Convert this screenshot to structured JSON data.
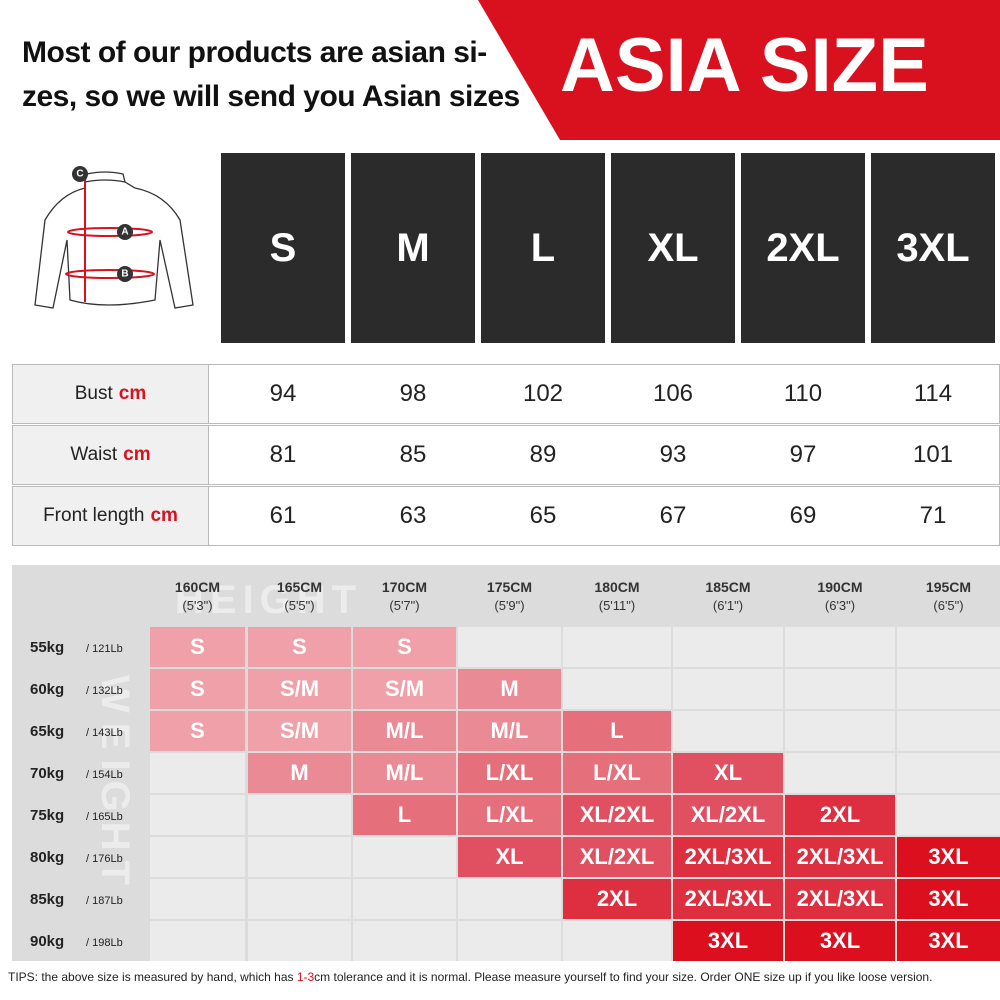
{
  "header": {
    "lines": [
      "Most of our products are asian si-",
      "zes, so we will send you Asian sizes"
    ],
    "badge": "ASIA SIZE"
  },
  "diagram": {
    "labels": [
      "C",
      "A",
      "B"
    ]
  },
  "sizes": [
    "S",
    "M",
    "L",
    "XL",
    "2XL",
    "3XL"
  ],
  "measurements": [
    {
      "label": "Bust",
      "unit": "cm",
      "values": [
        94,
        98,
        102,
        106,
        110,
        114
      ]
    },
    {
      "label": "Waist",
      "unit": "cm",
      "values": [
        81,
        85,
        89,
        93,
        97,
        101
      ]
    },
    {
      "label": "Front length",
      "unit": "cm",
      "values": [
        61,
        63,
        65,
        67,
        69,
        71
      ]
    }
  ],
  "fit_chart": {
    "watermarks": [
      "HEIGHT",
      "WEIGHT"
    ],
    "heights": [
      {
        "cm": "160CM",
        "ft": "(5'3\")"
      },
      {
        "cm": "165CM",
        "ft": "(5'5\")"
      },
      {
        "cm": "170CM",
        "ft": "(5'7\")"
      },
      {
        "cm": "175CM",
        "ft": "(5'9\")"
      },
      {
        "cm": "180CM",
        "ft": "(5'11\")"
      },
      {
        "cm": "185CM",
        "ft": "(6'1\")"
      },
      {
        "cm": "190CM",
        "ft": "(6'3\")"
      },
      {
        "cm": "195CM",
        "ft": "(6'5\")"
      }
    ],
    "weights": [
      {
        "kg": "55kg",
        "lb": "/ 121Lb"
      },
      {
        "kg": "60kg",
        "lb": "/ 132Lb"
      },
      {
        "kg": "65kg",
        "lb": "/ 143Lb"
      },
      {
        "kg": "70kg",
        "lb": "/ 154Lb"
      },
      {
        "kg": "75kg",
        "lb": "/ 165Lb"
      },
      {
        "kg": "80kg",
        "lb": "/ 176Lb"
      },
      {
        "kg": "85kg",
        "lb": "/ 187Lb"
      },
      {
        "kg": "90kg",
        "lb": "/ 198Lb"
      }
    ],
    "cells": [
      [
        {
          "text": "S",
          "color": "#efa0a9"
        },
        {
          "text": "S",
          "color": "#efa0a9"
        },
        {
          "text": "S",
          "color": "#efa0a9"
        },
        null,
        null,
        null,
        null,
        null
      ],
      [
        {
          "text": "S",
          "color": "#efa0a9"
        },
        {
          "text": "S/M",
          "color": "#efa0a9"
        },
        {
          "text": "S/M",
          "color": "#efa0a9"
        },
        {
          "text": "M",
          "color": "#ea8a95"
        },
        null,
        null,
        null,
        null
      ],
      [
        {
          "text": "S",
          "color": "#efa0a9"
        },
        {
          "text": "S/M",
          "color": "#efa0a9"
        },
        {
          "text": "M/L",
          "color": "#ea8a95"
        },
        {
          "text": "M/L",
          "color": "#ea8a95"
        },
        {
          "text": "L",
          "color": "#e56f7b"
        },
        null,
        null,
        null
      ],
      [
        null,
        {
          "text": "M",
          "color": "#ea8a95"
        },
        {
          "text": "M/L",
          "color": "#ea8a95"
        },
        {
          "text": "L/XL",
          "color": "#e56f7b"
        },
        {
          "text": "L/XL",
          "color": "#e56f7b"
        },
        {
          "text": "XL",
          "color": "#e05060"
        },
        null,
        null
      ],
      [
        null,
        null,
        {
          "text": "L",
          "color": "#e56f7b"
        },
        {
          "text": "L/XL",
          "color": "#e56f7b"
        },
        {
          "text": "XL/2XL",
          "color": "#e05060"
        },
        {
          "text": "XL/2XL",
          "color": "#e05060"
        },
        {
          "text": "2XL",
          "color": "#dd2f3f"
        },
        null
      ],
      [
        null,
        null,
        null,
        {
          "text": "XL",
          "color": "#e05060"
        },
        {
          "text": "XL/2XL",
          "color": "#e05060"
        },
        {
          "text": "2XL/3XL",
          "color": "#dd2f3f"
        },
        {
          "text": "2XL/3XL",
          "color": "#dd2f3f"
        },
        {
          "text": "3XL",
          "color": "#dc0f1e"
        }
      ],
      [
        null,
        null,
        null,
        null,
        {
          "text": "2XL",
          "color": "#dd2f3f"
        },
        {
          "text": "2XL/3XL",
          "color": "#dd2f3f"
        },
        {
          "text": "2XL/3XL",
          "color": "#dd2f3f"
        },
        {
          "text": "3XL",
          "color": "#dc0f1e"
        }
      ],
      [
        null,
        null,
        null,
        null,
        null,
        {
          "text": "3XL",
          "color": "#dc0f1e"
        },
        {
          "text": "3XL",
          "color": "#dc0f1e"
        },
        {
          "text": "3XL",
          "color": "#dc0f1e"
        }
      ]
    ]
  },
  "tips": {
    "prefix": "TIPS:  the above size is measured by hand, which has ",
    "highlight": "1-3",
    "suffix": "cm tolerance and it is normal. Please measure yourself to find your size. Order ONE size up if you like loose version."
  }
}
